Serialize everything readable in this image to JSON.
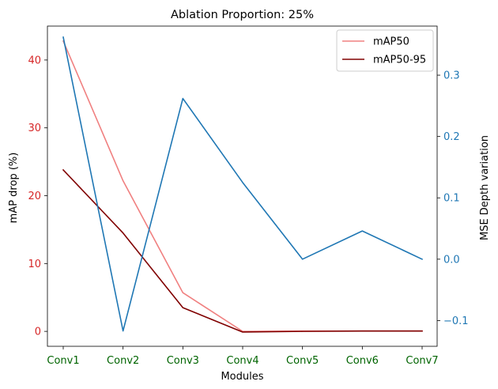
{
  "chart_data": {
    "type": "line",
    "title": "Ablation Proportion: 25%",
    "xlabel": "Modules",
    "categories": [
      "Conv1",
      "Conv2",
      "Conv3",
      "Conv4",
      "Conv5",
      "Conv6",
      "Conv7"
    ],
    "y_left": {
      "label": "mAP drop (%)",
      "ylim": [
        -2.2,
        45.0
      ],
      "ticks": [
        0,
        10,
        20,
        30,
        40
      ],
      "color": "#d62728"
    },
    "y_right": {
      "label": "MSE Depth variation",
      "ylim": [
        -0.142,
        0.38
      ],
      "ticks": [
        -0.1,
        0.0,
        0.1,
        0.2,
        0.3
      ],
      "tick_labels": [
        "−0.1",
        "0.0",
        "0.1",
        "0.2",
        "0.3"
      ],
      "color": "#1f77b4"
    },
    "series": [
      {
        "name": "mAP50",
        "axis": "left",
        "color": "#f08080",
        "values": [
          42.8,
          22.2,
          5.7,
          0.0,
          0.05,
          0.05,
          0.05
        ]
      },
      {
        "name": "mAP50-95",
        "axis": "left",
        "color": "#800000",
        "values": [
          23.8,
          14.5,
          3.5,
          -0.1,
          0.0,
          0.05,
          0.05
        ]
      },
      {
        "axis": "right",
        "color": "#1f77b4",
        "values": [
          0.362,
          -0.117,
          0.262,
          0.125,
          0.0,
          0.046,
          0.0
        ]
      }
    ],
    "x_tick_color": "#006400",
    "legend": {
      "location": "top-right",
      "entries": [
        "mAP50",
        "mAP50-95"
      ]
    },
    "grid": false
  }
}
